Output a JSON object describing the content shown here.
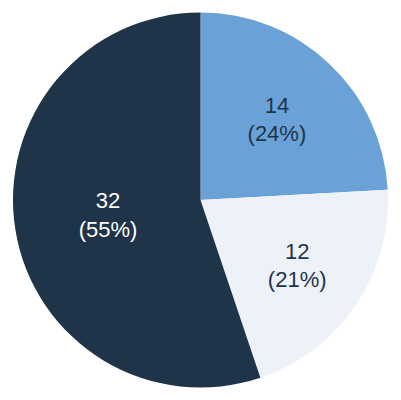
{
  "chart_data": {
    "type": "pie",
    "values": [
      14,
      12,
      32
    ],
    "value_labels": [
      "14\n(24%)",
      "12\n(21%)",
      "32\n(55%)"
    ],
    "colors": [
      "#6aa2d8",
      "#edf1f8",
      "#1f3449"
    ],
    "data_labels": true
  }
}
